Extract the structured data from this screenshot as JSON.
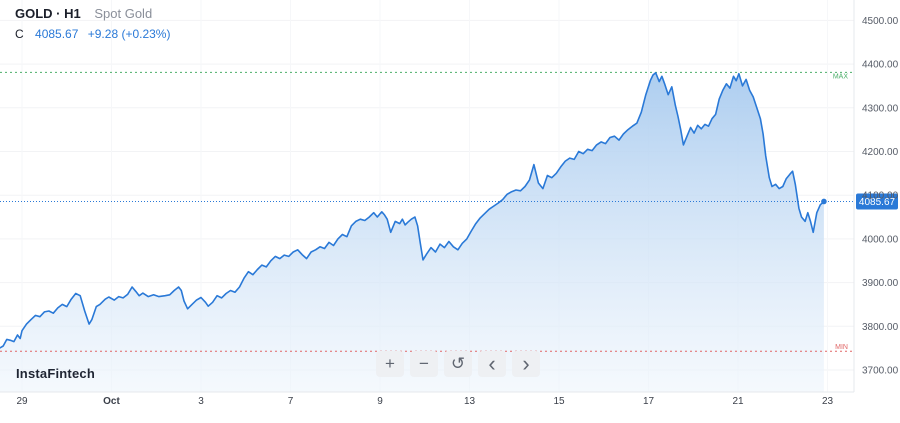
{
  "header": {
    "symbol": "GOLD · H1",
    "description": "Spot Gold",
    "close_label": "C",
    "close_value": "4085.67",
    "change": "+9.28 (+0.23%)"
  },
  "brand": "InstaFintech",
  "toolbar": {
    "zoom_in": "+",
    "zoom_out": "−",
    "reset": "↺",
    "back": "‹",
    "forward": "›"
  },
  "colors": {
    "line": "#2a79d7",
    "fill_top": "#a9cbef",
    "fill_bottom": "#eef5fc",
    "max_line": "#4caf6a",
    "min_line": "#e06666",
    "price_tag": "#2a79d7"
  },
  "chart_data": {
    "type": "area",
    "y_axis": {
      "ticks": [
        3700,
        3800,
        3900,
        4000,
        4100,
        4200,
        4300,
        4400,
        4500
      ],
      "tick_labels": [
        "3700.00",
        "3800.00",
        "3900.00",
        "4000.00",
        "4100.00",
        "4200.00",
        "4300.00",
        "4400.00",
        "4500.00"
      ],
      "range": [
        3660,
        4540
      ],
      "position": "right"
    },
    "x_axis": {
      "ticks": [
        {
          "label": "29",
          "t": 0.25
        },
        {
          "label": "Oct",
          "t": 1.25
        },
        {
          "label": "3",
          "t": 2.25
        },
        {
          "label": "7",
          "t": 3.25
        },
        {
          "label": "9",
          "t": 4.25
        },
        {
          "label": "13",
          "t": 5.25
        },
        {
          "label": "15",
          "t": 6.25
        },
        {
          "label": "17",
          "t": 7.25
        },
        {
          "label": "21",
          "t": 8.25
        },
        {
          "label": "23",
          "t": 9.25
        }
      ],
      "range": [
        0,
        9.5
      ]
    },
    "max_label": "MAX",
    "max_value": 4381,
    "min_label": "MIN",
    "min_value": 3743,
    "last_price_label": "4085.67",
    "last_price": 4085.67,
    "series": [
      {
        "points": [
          [
            0.0,
            3750
          ],
          [
            0.04,
            3755
          ],
          [
            0.08,
            3770
          ],
          [
            0.12,
            3768
          ],
          [
            0.16,
            3765
          ],
          [
            0.2,
            3780
          ],
          [
            0.23,
            3772
          ],
          [
            0.25,
            3790
          ],
          [
            0.3,
            3805
          ],
          [
            0.35,
            3815
          ],
          [
            0.4,
            3825
          ],
          [
            0.45,
            3822
          ],
          [
            0.5,
            3833
          ],
          [
            0.55,
            3835
          ],
          [
            0.6,
            3830
          ],
          [
            0.65,
            3842
          ],
          [
            0.7,
            3850
          ],
          [
            0.75,
            3845
          ],
          [
            0.8,
            3862
          ],
          [
            0.85,
            3875
          ],
          [
            0.9,
            3870
          ],
          [
            0.95,
            3835
          ],
          [
            1.0,
            3805
          ],
          [
            1.03,
            3815
          ],
          [
            1.08,
            3845
          ],
          [
            1.12,
            3850
          ],
          [
            1.18,
            3862
          ],
          [
            1.22,
            3867
          ],
          [
            1.28,
            3860
          ],
          [
            1.33,
            3868
          ],
          [
            1.38,
            3865
          ],
          [
            1.43,
            3873
          ],
          [
            1.48,
            3890
          ],
          [
            1.52,
            3880
          ],
          [
            1.56,
            3870
          ],
          [
            1.6,
            3876
          ],
          [
            1.66,
            3868
          ],
          [
            1.72,
            3872
          ],
          [
            1.78,
            3868
          ],
          [
            1.85,
            3870
          ],
          [
            1.9,
            3872
          ],
          [
            1.95,
            3882
          ],
          [
            2.0,
            3890
          ],
          [
            2.03,
            3882
          ],
          [
            2.06,
            3858
          ],
          [
            2.1,
            3840
          ],
          [
            2.15,
            3850
          ],
          [
            2.2,
            3860
          ],
          [
            2.25,
            3866
          ],
          [
            2.3,
            3855
          ],
          [
            2.33,
            3846
          ],
          [
            2.38,
            3855
          ],
          [
            2.43,
            3870
          ],
          [
            2.48,
            3865
          ],
          [
            2.53,
            3875
          ],
          [
            2.58,
            3882
          ],
          [
            2.63,
            3878
          ],
          [
            2.68,
            3890
          ],
          [
            2.73,
            3910
          ],
          [
            2.78,
            3925
          ],
          [
            2.83,
            3918
          ],
          [
            2.88,
            3930
          ],
          [
            2.93,
            3940
          ],
          [
            2.98,
            3936
          ],
          [
            3.03,
            3950
          ],
          [
            3.08,
            3960
          ],
          [
            3.13,
            3955
          ],
          [
            3.18,
            3963
          ],
          [
            3.23,
            3960
          ],
          [
            3.28,
            3970
          ],
          [
            3.33,
            3975
          ],
          [
            3.38,
            3964
          ],
          [
            3.43,
            3955
          ],
          [
            3.48,
            3970
          ],
          [
            3.53,
            3975
          ],
          [
            3.58,
            3982
          ],
          [
            3.63,
            3978
          ],
          [
            3.68,
            3992
          ],
          [
            3.73,
            3985
          ],
          [
            3.78,
            4000
          ],
          [
            3.83,
            4010
          ],
          [
            3.88,
            4005
          ],
          [
            3.93,
            4030
          ],
          [
            3.98,
            4040
          ],
          [
            4.03,
            4045
          ],
          [
            4.08,
            4042
          ],
          [
            4.13,
            4050
          ],
          [
            4.18,
            4060
          ],
          [
            4.22,
            4050
          ],
          [
            4.27,
            4062
          ],
          [
            4.3,
            4055
          ],
          [
            4.33,
            4045
          ],
          [
            4.37,
            4015
          ],
          [
            4.42,
            4040
          ],
          [
            4.47,
            4035
          ],
          [
            4.5,
            4045
          ],
          [
            4.53,
            4032
          ],
          [
            4.56,
            4038
          ],
          [
            4.6,
            4045
          ],
          [
            4.64,
            4050
          ],
          [
            4.67,
            4030
          ],
          [
            4.7,
            3990
          ],
          [
            4.73,
            3952
          ],
          [
            4.77,
            3965
          ],
          [
            4.82,
            3980
          ],
          [
            4.87,
            3970
          ],
          [
            4.92,
            3988
          ],
          [
            4.97,
            3980
          ],
          [
            5.02,
            3994
          ],
          [
            5.07,
            3982
          ],
          [
            5.12,
            3975
          ],
          [
            5.17,
            3990
          ],
          [
            5.22,
            4000
          ],
          [
            5.27,
            4018
          ],
          [
            5.32,
            4035
          ],
          [
            5.37,
            4048
          ],
          [
            5.42,
            4058
          ],
          [
            5.47,
            4068
          ],
          [
            5.52,
            4075
          ],
          [
            5.57,
            4082
          ],
          [
            5.62,
            4090
          ],
          [
            5.67,
            4102
          ],
          [
            5.72,
            4108
          ],
          [
            5.77,
            4112
          ],
          [
            5.82,
            4110
          ],
          [
            5.87,
            4120
          ],
          [
            5.92,
            4135
          ],
          [
            5.97,
            4170
          ],
          [
            6.02,
            4128
          ],
          [
            6.07,
            4115
          ],
          [
            6.12,
            4145
          ],
          [
            6.17,
            4140
          ],
          [
            6.22,
            4150
          ],
          [
            6.27,
            4165
          ],
          [
            6.32,
            4178
          ],
          [
            6.37,
            4185
          ],
          [
            6.42,
            4182
          ],
          [
            6.47,
            4200
          ],
          [
            6.52,
            4195
          ],
          [
            6.57,
            4205
          ],
          [
            6.62,
            4202
          ],
          [
            6.67,
            4215
          ],
          [
            6.72,
            4222
          ],
          [
            6.77,
            4218
          ],
          [
            6.82,
            4232
          ],
          [
            6.87,
            4235
          ],
          [
            6.92,
            4226
          ],
          [
            6.97,
            4240
          ],
          [
            7.02,
            4250
          ],
          [
            7.07,
            4258
          ],
          [
            7.12,
            4265
          ],
          [
            7.17,
            4290
          ],
          [
            7.22,
            4330
          ],
          [
            7.27,
            4362
          ],
          [
            7.3,
            4375
          ],
          [
            7.33,
            4380
          ],
          [
            7.37,
            4360
          ],
          [
            7.4,
            4372
          ],
          [
            7.43,
            4355
          ],
          [
            7.47,
            4330
          ],
          [
            7.51,
            4348
          ],
          [
            7.55,
            4305
          ],
          [
            7.58,
            4280
          ],
          [
            7.61,
            4250
          ],
          [
            7.64,
            4215
          ],
          [
            7.68,
            4235
          ],
          [
            7.72,
            4255
          ],
          [
            7.76,
            4242
          ],
          [
            7.8,
            4260
          ],
          [
            7.84,
            4252
          ],
          [
            7.88,
            4262
          ],
          [
            7.92,
            4258
          ],
          [
            7.96,
            4275
          ],
          [
            8.0,
            4285
          ],
          [
            8.04,
            4320
          ],
          [
            8.08,
            4340
          ],
          [
            8.12,
            4355
          ],
          [
            8.16,
            4345
          ],
          [
            8.2,
            4372
          ],
          [
            8.23,
            4362
          ],
          [
            8.26,
            4378
          ],
          [
            8.3,
            4350
          ],
          [
            8.34,
            4365
          ],
          [
            8.38,
            4340
          ],
          [
            8.42,
            4325
          ],
          [
            8.46,
            4300
          ],
          [
            8.5,
            4275
          ],
          [
            8.53,
            4240
          ],
          [
            8.56,
            4190
          ],
          [
            8.6,
            4140
          ],
          [
            8.63,
            4120
          ],
          [
            8.67,
            4125
          ],
          [
            8.71,
            4115
          ],
          [
            8.75,
            4120
          ],
          [
            8.79,
            4138
          ],
          [
            8.83,
            4148
          ],
          [
            8.86,
            4155
          ],
          [
            8.89,
            4125
          ],
          [
            8.93,
            4070
          ],
          [
            8.96,
            4050
          ],
          [
            9.0,
            4040
          ],
          [
            9.03,
            4060
          ],
          [
            9.06,
            4040
          ],
          [
            9.09,
            4015
          ],
          [
            9.13,
            4060
          ],
          [
            9.17,
            4078
          ],
          [
            9.21,
            4085.67
          ]
        ]
      }
    ]
  }
}
